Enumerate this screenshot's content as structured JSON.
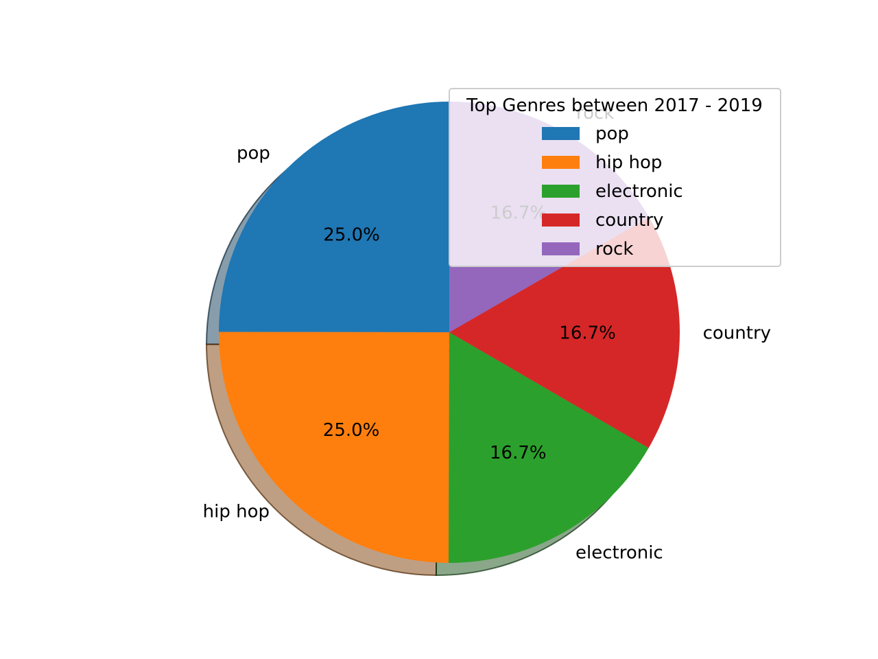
{
  "chart_data": {
    "type": "pie",
    "categories": [
      "pop",
      "hip hop",
      "electronic",
      "country",
      "rock"
    ],
    "values": [
      25.0,
      25.0,
      16.7,
      16.7,
      16.7
    ],
    "percent_labels": [
      "25.0%",
      "25.0%",
      "16.7%",
      "16.7%",
      "16.7%"
    ],
    "colors": [
      "#1f77b4",
      "#ff7f0e",
      "#2ca02c",
      "#d62728",
      "#9467bd"
    ],
    "start_angle_deg": 90,
    "direction": "counterclockwise",
    "shadow": true,
    "legend": {
      "title": "Top Genres between 2017 - 2019",
      "location": "upper-right",
      "entries": [
        "pop",
        "hip hop",
        "electronic",
        "country",
        "rock"
      ]
    }
  }
}
